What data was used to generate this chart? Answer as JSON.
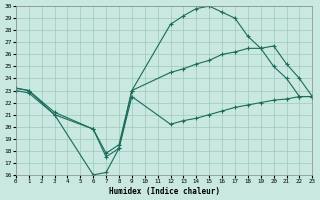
{
  "xlabel": "Humidex (Indice chaleur)",
  "xlim": [
    0,
    23
  ],
  "ylim": [
    16,
    30
  ],
  "yticks": [
    16,
    17,
    18,
    19,
    20,
    21,
    22,
    23,
    24,
    25,
    26,
    27,
    28,
    29,
    30
  ],
  "xticks": [
    0,
    1,
    2,
    3,
    4,
    5,
    6,
    7,
    8,
    9,
    10,
    11,
    12,
    13,
    14,
    15,
    16,
    17,
    18,
    19,
    20,
    21,
    22,
    23
  ],
  "bg_color": "#c8e8e0",
  "line_color": "#1a6b5a",
  "grid_color": "#a0c8c0",
  "line1_x": [
    0,
    1,
    3,
    6,
    7,
    8,
    9,
    12,
    13,
    14,
    15,
    16,
    17,
    18,
    19,
    20,
    21,
    22,
    23
  ],
  "line1_y": [
    23.0,
    22.8,
    21.0,
    16.0,
    16.2,
    18.2,
    22.5,
    20.2,
    20.5,
    20.7,
    21.0,
    21.3,
    21.6,
    21.8,
    22.0,
    22.2,
    22.3,
    22.5,
    22.5
  ],
  "line2_x": [
    0,
    1,
    3,
    6,
    7,
    8,
    9,
    12,
    13,
    14,
    15,
    16,
    17,
    18,
    19,
    20,
    21,
    22,
    23
  ],
  "line2_y": [
    23.2,
    23.0,
    21.2,
    19.8,
    17.8,
    18.5,
    23.0,
    24.5,
    24.8,
    25.2,
    25.5,
    26.0,
    26.2,
    26.5,
    26.5,
    26.7,
    25.2,
    24.0,
    22.5
  ],
  "line3_x": [
    0,
    1,
    3,
    6,
    7,
    8,
    9,
    12,
    13,
    14,
    15,
    16,
    17,
    18,
    19,
    20,
    21,
    22,
    23
  ],
  "line3_y": [
    23.2,
    23.0,
    21.0,
    19.8,
    17.5,
    18.2,
    23.0,
    28.5,
    29.2,
    29.8,
    30.0,
    29.5,
    29.0,
    27.5,
    26.5,
    25.0,
    24.0,
    22.5,
    22.5
  ]
}
